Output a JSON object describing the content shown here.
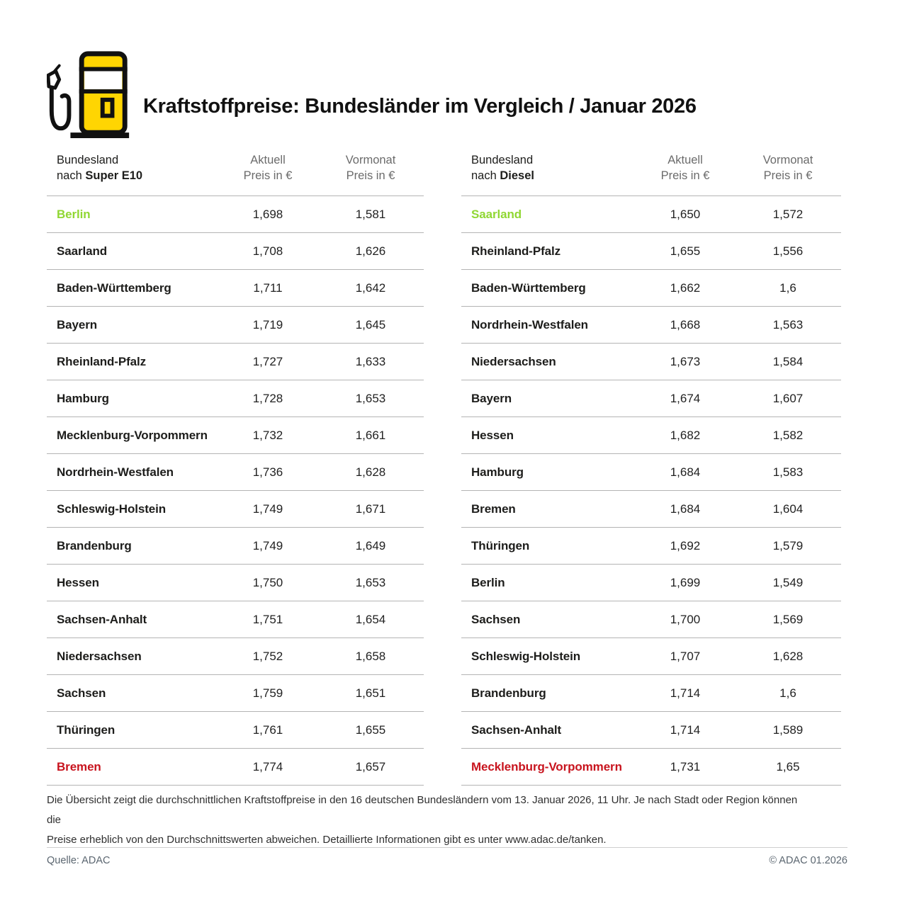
{
  "header": {
    "title": "Kraftstoffpreise: Bundesländer im Vergleich / Januar 2026",
    "icon": "fuel-pump-icon",
    "icon_colors": {
      "yellow": "#ffd502",
      "black": "#111111"
    }
  },
  "colors": {
    "cheapest_green": "#90d733",
    "most_expensive_red": "#c8141e",
    "separator_line": "#b4b4b4",
    "column_header_gray": "#6b6b6b"
  },
  "tables": [
    {
      "header": {
        "col1_line1": "Bundesland",
        "col1_prefix": "nach ",
        "col1_fuel": "Super E10",
        "col2_line1": "Aktuell",
        "col2_line2": "Preis in €",
        "col3_line1": "Vormonat",
        "col3_line2": "Preis in €"
      },
      "rows": [
        {
          "name": "Berlin",
          "aktuell": "1,698",
          "vormonat": "1,581",
          "highlight": "green"
        },
        {
          "name": "Saarland",
          "aktuell": "1,708",
          "vormonat": "1,626",
          "highlight": null
        },
        {
          "name": "Baden-Württemberg",
          "aktuell": "1,711",
          "vormonat": "1,642",
          "highlight": null
        },
        {
          "name": "Bayern",
          "aktuell": "1,719",
          "vormonat": "1,645",
          "highlight": null
        },
        {
          "name": "Rheinland-Pfalz",
          "aktuell": "1,727",
          "vormonat": "1,633",
          "highlight": null
        },
        {
          "name": "Hamburg",
          "aktuell": "1,728",
          "vormonat": "1,653",
          "highlight": null
        },
        {
          "name": "Mecklenburg-Vorpommern",
          "aktuell": "1,732",
          "vormonat": "1,661",
          "highlight": null
        },
        {
          "name": "Nordrhein-Westfalen",
          "aktuell": "1,736",
          "vormonat": "1,628",
          "highlight": null
        },
        {
          "name": "Schleswig-Holstein",
          "aktuell": "1,749",
          "vormonat": "1,671",
          "highlight": null
        },
        {
          "name": "Brandenburg",
          "aktuell": "1,749",
          "vormonat": "1,649",
          "highlight": null
        },
        {
          "name": "Hessen",
          "aktuell": "1,750",
          "vormonat": "1,653",
          "highlight": null
        },
        {
          "name": "Sachsen-Anhalt",
          "aktuell": "1,751",
          "vormonat": "1,654",
          "highlight": null
        },
        {
          "name": "Niedersachsen",
          "aktuell": "1,752",
          "vormonat": "1,658",
          "highlight": null
        },
        {
          "name": "Sachsen",
          "aktuell": "1,759",
          "vormonat": "1,651",
          "highlight": null
        },
        {
          "name": "Thüringen",
          "aktuell": "1,761",
          "vormonat": "1,655",
          "highlight": null
        },
        {
          "name": "Bremen",
          "aktuell": "1,774",
          "vormonat": "1,657",
          "highlight": "red"
        }
      ]
    },
    {
      "header": {
        "col1_line1": "Bundesland",
        "col1_prefix": "nach ",
        "col1_fuel": "Diesel",
        "col2_line1": "Aktuell",
        "col2_line2": "Preis in €",
        "col3_line1": "Vormonat",
        "col3_line2": "Preis in €"
      },
      "rows": [
        {
          "name": "Saarland",
          "aktuell": "1,650",
          "vormonat": "1,572",
          "highlight": "green"
        },
        {
          "name": "Rheinland-Pfalz",
          "aktuell": "1,655",
          "vormonat": "1,556",
          "highlight": null
        },
        {
          "name": "Baden-Württemberg",
          "aktuell": "1,662",
          "vormonat": "1,6",
          "highlight": null
        },
        {
          "name": "Nordrhein-Westfalen",
          "aktuell": "1,668",
          "vormonat": "1,563",
          "highlight": null
        },
        {
          "name": "Niedersachsen",
          "aktuell": "1,673",
          "vormonat": "1,584",
          "highlight": null
        },
        {
          "name": "Bayern",
          "aktuell": "1,674",
          "vormonat": "1,607",
          "highlight": null
        },
        {
          "name": "Hessen",
          "aktuell": "1,682",
          "vormonat": "1,582",
          "highlight": null
        },
        {
          "name": "Hamburg",
          "aktuell": "1,684",
          "vormonat": "1,583",
          "highlight": null
        },
        {
          "name": "Bremen",
          "aktuell": "1,684",
          "vormonat": "1,604",
          "highlight": null
        },
        {
          "name": "Thüringen",
          "aktuell": "1,692",
          "vormonat": "1,579",
          "highlight": null
        },
        {
          "name": "Berlin",
          "aktuell": "1,699",
          "vormonat": "1,549",
          "highlight": null
        },
        {
          "name": "Sachsen",
          "aktuell": "1,700",
          "vormonat": "1,569",
          "highlight": null
        },
        {
          "name": "Schleswig-Holstein",
          "aktuell": "1,707",
          "vormonat": "1,628",
          "highlight": null
        },
        {
          "name": "Brandenburg",
          "aktuell": "1,714",
          "vormonat": "1,6",
          "highlight": null
        },
        {
          "name": "Sachsen-Anhalt",
          "aktuell": "1,714",
          "vormonat": "1,589",
          "highlight": null
        },
        {
          "name": "Mecklenburg-Vorpommern",
          "aktuell": "1,731",
          "vormonat": "1,65",
          "highlight": "red"
        }
      ]
    }
  ],
  "note": {
    "line1": "Die Übersicht zeigt die durchschnittlichen Kraftstoffpreise in den 16 deutschen Bundesländern vom 13. Januar 2026, 11 Uhr. Je nach Stadt oder Region können die",
    "line2": "Preise erheblich von den Durchschnittswerten abweichen. Detaillierte Informationen gibt es unter www.adac.de/tanken."
  },
  "footer": {
    "source": "Quelle: ADAC",
    "copyright": "© ADAC 01.2026"
  },
  "chart_data": [
    {
      "type": "table",
      "title": "Bundesland nach Super E10",
      "columns": [
        "Bundesland",
        "Aktuell Preis in €",
        "Vormonat Preis in €"
      ],
      "rows": [
        [
          "Berlin",
          1.698,
          1.581
        ],
        [
          "Saarland",
          1.708,
          1.626
        ],
        [
          "Baden-Württemberg",
          1.711,
          1.642
        ],
        [
          "Bayern",
          1.719,
          1.645
        ],
        [
          "Rheinland-Pfalz",
          1.727,
          1.633
        ],
        [
          "Hamburg",
          1.728,
          1.653
        ],
        [
          "Mecklenburg-Vorpommern",
          1.732,
          1.661
        ],
        [
          "Nordrhein-Westfalen",
          1.736,
          1.628
        ],
        [
          "Schleswig-Holstein",
          1.749,
          1.671
        ],
        [
          "Brandenburg",
          1.749,
          1.649
        ],
        [
          "Hessen",
          1.75,
          1.653
        ],
        [
          "Sachsen-Anhalt",
          1.751,
          1.654
        ],
        [
          "Niedersachsen",
          1.752,
          1.658
        ],
        [
          "Sachsen",
          1.759,
          1.651
        ],
        [
          "Thüringen",
          1.761,
          1.655
        ],
        [
          "Bremen",
          1.774,
          1.657
        ]
      ]
    },
    {
      "type": "table",
      "title": "Bundesland nach Diesel",
      "columns": [
        "Bundesland",
        "Aktuell Preis in €",
        "Vormonat Preis in €"
      ],
      "rows": [
        [
          "Saarland",
          1.65,
          1.572
        ],
        [
          "Rheinland-Pfalz",
          1.655,
          1.556
        ],
        [
          "Baden-Württemberg",
          1.662,
          1.6
        ],
        [
          "Nordrhein-Westfalen",
          1.668,
          1.563
        ],
        [
          "Niedersachsen",
          1.673,
          1.584
        ],
        [
          "Bayern",
          1.674,
          1.607
        ],
        [
          "Hessen",
          1.682,
          1.582
        ],
        [
          "Hamburg",
          1.684,
          1.583
        ],
        [
          "Bremen",
          1.684,
          1.604
        ],
        [
          "Thüringen",
          1.692,
          1.579
        ],
        [
          "Berlin",
          1.699,
          1.549
        ],
        [
          "Sachsen",
          1.7,
          1.569
        ],
        [
          "Schleswig-Holstein",
          1.707,
          1.628
        ],
        [
          "Brandenburg",
          1.714,
          1.6
        ],
        [
          "Sachsen-Anhalt",
          1.714,
          1.589
        ],
        [
          "Mecklenburg-Vorpommern",
          1.731,
          1.65
        ]
      ]
    }
  ]
}
